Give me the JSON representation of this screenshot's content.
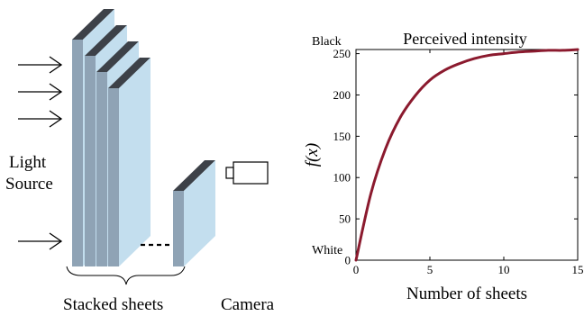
{
  "diagram": {
    "light_source_line1": "Light",
    "light_source_line2": "Source",
    "stacked_sheets_label": "Stacked sheets",
    "camera_label": "Camera"
  },
  "chart_data": {
    "type": "line",
    "title": "Perceived intensity",
    "xlabel": "Number of sheets",
    "ylabel": "f(x)",
    "xlim": [
      0,
      15
    ],
    "ylim": [
      0,
      255
    ],
    "xticks": [
      0,
      5,
      10,
      15
    ],
    "yticks": [
      0,
      50,
      100,
      150,
      200,
      250
    ],
    "top_annotation": "Black",
    "bottom_annotation": "White",
    "grid": false,
    "series": [
      {
        "color": "#8b1a2e",
        "x": [
          0,
          1,
          2,
          3,
          4,
          5,
          6,
          7,
          8,
          9,
          10,
          11,
          12,
          13,
          14,
          15
        ],
        "y": [
          0,
          80,
          135,
          173,
          199,
          218,
          230,
          238,
          244,
          248,
          250,
          252,
          253,
          254,
          254,
          255
        ]
      }
    ]
  }
}
